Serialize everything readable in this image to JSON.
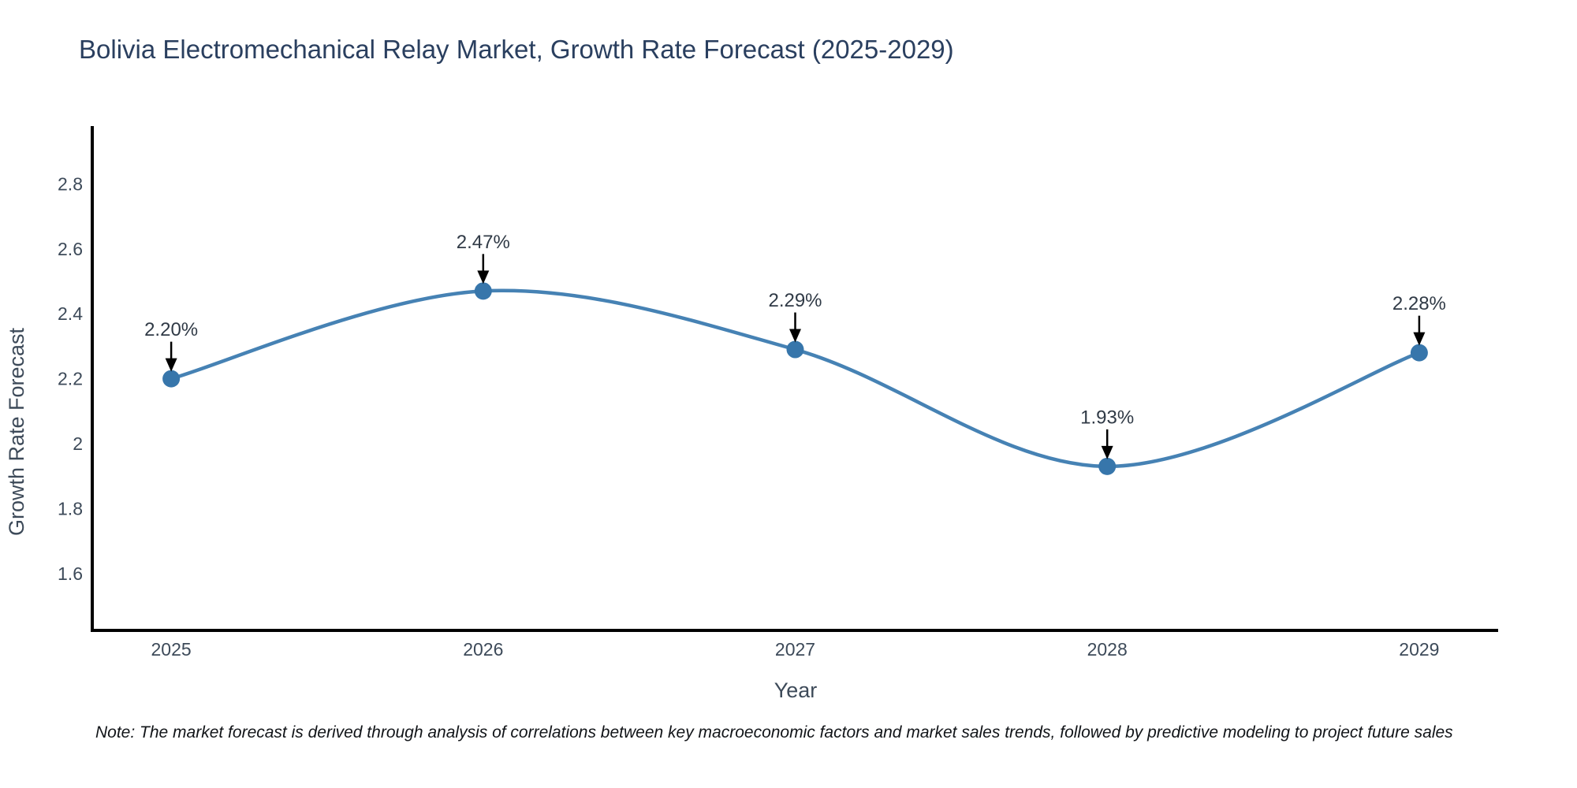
{
  "title": "Bolivia Electromechanical Relay Market, Growth Rate Forecast (2025-2029)",
  "note": "Note: The market forecast is derived through analysis of correlations between key macroeconomic factors and market sales trends, followed by predictive modeling to project future sales",
  "chart_data": {
    "type": "line",
    "title": "Bolivia Electromechanical Relay Market, Growth Rate Forecast (2025-2029)",
    "xlabel": "Year",
    "ylabel": "Growth Rate Forecast",
    "x": [
      2025,
      2026,
      2027,
      2028,
      2029
    ],
    "series": [
      {
        "name": "Growth Rate Forecast",
        "values": [
          2.2,
          2.47,
          2.29,
          1.93,
          2.28
        ]
      }
    ],
    "point_labels": [
      "2.20%",
      "2.47%",
      "2.29%",
      "1.93%",
      "2.28%"
    ],
    "x_tick_labels": [
      "2025",
      "2026",
      "2027",
      "2028",
      "2029"
    ],
    "y_ticks": [
      1.6,
      1.8,
      2.0,
      2.2,
      2.4,
      2.6,
      2.8
    ],
    "y_tick_labels": [
      "1.6",
      "1.8",
      "2",
      "2.2",
      "2.4",
      "2.6",
      "2.8"
    ],
    "xlim": [
      2024.747,
      2029.253
    ],
    "ylim": [
      1.425,
      2.978
    ],
    "grid": false,
    "legend": "none",
    "line_shape": "spline",
    "annotation_style": "value label with downward black arrow to marker",
    "colors": {
      "line": "#4682b4",
      "marker": "#3776ab",
      "axis": "#000000",
      "arrow": "#000000",
      "title": "#2a3f5f",
      "tick": "#3d4a59"
    }
  }
}
